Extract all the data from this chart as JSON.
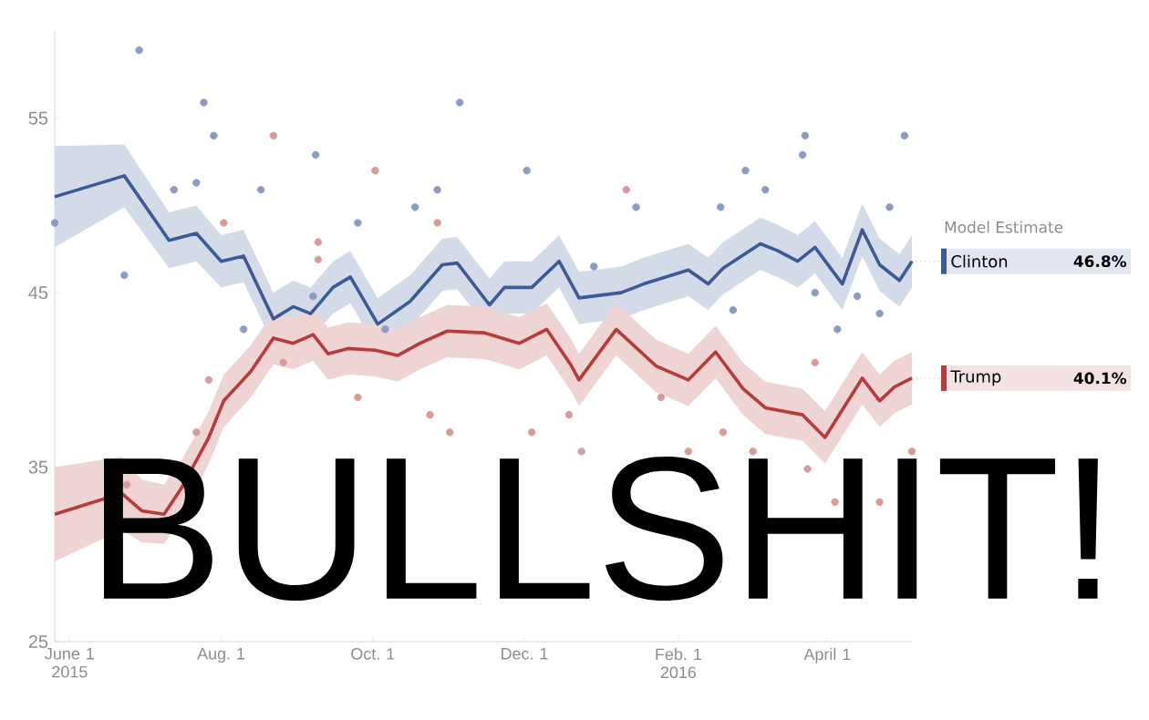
{
  "chart_data": {
    "type": "line",
    "legend_title": "Model Estimate",
    "legend": "right",
    "xlim": [
      "2015-05-26",
      "2016-05-05"
    ],
    "ylim": [
      25,
      60
    ],
    "xticks": [
      {
        "value": "2015-06-01",
        "label": "June 1 2015"
      },
      {
        "value": "2015-08-01",
        "label": "Aug. 1"
      },
      {
        "value": "2015-10-01",
        "label": "Oct. 1"
      },
      {
        "value": "2015-12-01",
        "label": "Dec. 1"
      },
      {
        "value": "2016-02-01",
        "label": "Feb. 1 2016"
      },
      {
        "value": "2016-04-01",
        "label": "April 1"
      }
    ],
    "yticks": [
      25,
      35,
      45,
      55
    ],
    "grid": false,
    "annotations": [
      "BULLSHIT!",
      "46.8%",
      "40.1%"
    ],
    "series": [
      {
        "type": "scatter",
        "marker": "circle",
        "color": "#8a9cc4",
        "x": [
          "2015-06-29",
          "2015-05-26",
          "2015-06-23",
          "2015-07-13",
          "2015-07-22",
          "2015-07-25",
          "2015-07-29",
          "2015-08-17",
          "2015-09-08",
          "2015-09-25",
          "2015-11-05",
          "2015-10-27",
          "2015-12-02",
          "2015-10-18",
          "2015-08-10",
          "2015-09-07",
          "2015-10-06",
          "2016-03-23",
          "2016-03-22",
          "2016-05-02",
          "2016-02-28",
          "2016-03-07",
          "2016-02-18",
          "2016-01-15",
          "2015-12-29",
          "2016-04-13",
          "2016-04-22",
          "2016-03-27",
          "2016-04-26",
          "2016-02-23",
          "2016-04-05"
        ],
        "values": [
          58.9,
          49.0,
          46.0,
          50.9,
          51.3,
          55.9,
          54.0,
          50.9,
          52.9,
          49.0,
          55.9,
          50.9,
          52.0,
          49.9,
          42.9,
          44.8,
          42.9,
          54.0,
          52.9,
          54.0,
          52.0,
          50.9,
          49.9,
          49.9,
          46.5,
          44.8,
          43.8,
          45.0,
          49.9,
          44.0,
          42.9
        ]
      },
      {
        "type": "scatter",
        "marker": "circle",
        "color": "#d99a9a",
        "x": [
          "2015-08-22",
          "2015-10-02",
          "2015-09-09",
          "2015-08-02",
          "2015-09-09",
          "2015-10-27",
          "2015-07-22",
          "2015-07-27",
          "2015-06-24",
          "2015-09-25",
          "2015-10-24",
          "2015-11-01",
          "2015-12-04",
          "2015-08-26",
          "2016-01-11",
          "2015-12-19",
          "2015-12-24",
          "2016-02-05",
          "2016-02-19",
          "2016-03-02",
          "2016-03-24",
          "2016-04-04",
          "2016-04-22",
          "2016-05-05",
          "2016-01-25",
          "2016-03-27"
        ],
        "values": [
          54.0,
          52.0,
          47.9,
          49.0,
          46.9,
          49.0,
          37.0,
          40.0,
          34.0,
          39.0,
          38.0,
          37.0,
          37.0,
          41.0,
          50.9,
          38.0,
          35.9,
          35.9,
          37.0,
          35.9,
          34.9,
          33.0,
          33.0,
          35.9,
          39.0,
          41.0
        ]
      },
      {
        "marker": "none",
        "name": "Clinton",
        "color": "#3d5a98",
        "x": [
          "2015-05-26",
          "2015-06-23",
          "2015-07-11",
          "2015-07-22",
          "2015-08-01",
          "2015-08-10",
          "2015-08-22",
          "2015-08-30",
          "2015-09-06",
          "2015-09-15",
          "2015-09-22",
          "2015-10-03",
          "2015-10-16",
          "2015-10-29",
          "2015-11-04",
          "2015-11-17",
          "2015-11-23",
          "2015-12-04",
          "2015-12-15",
          "2015-12-23",
          "2016-01-09",
          "2016-01-18",
          "2016-02-05",
          "2016-02-13",
          "2016-02-19",
          "2016-03-05",
          "2016-03-12",
          "2016-03-20",
          "2016-03-27",
          "2016-04-07",
          "2016-04-15",
          "2016-04-22",
          "2016-04-30",
          "2016-05-05"
        ],
        "values": [
          50.5,
          51.7,
          48.0,
          48.4,
          46.8,
          47.1,
          43.5,
          44.2,
          43.8,
          45.3,
          45.9,
          43.2,
          44.5,
          46.6,
          46.7,
          44.3,
          45.3,
          45.3,
          46.8,
          44.7,
          45.0,
          45.5,
          46.3,
          45.5,
          46.4,
          47.8,
          47.4,
          46.8,
          47.6,
          45.5,
          48.6,
          46.6,
          45.7,
          46.8
        ],
        "upper": [
          53.4,
          53.5,
          49.6,
          50.0,
          48.3,
          48.6,
          45.0,
          45.7,
          45.3,
          46.8,
          47.4,
          44.7,
          46.0,
          48.1,
          48.2,
          45.8,
          46.8,
          46.8,
          48.3,
          46.2,
          46.5,
          47.0,
          47.8,
          47.0,
          47.9,
          49.3,
          48.9,
          48.3,
          49.1,
          47.0,
          50.1,
          48.1,
          47.2,
          48.3
        ],
        "lower": [
          47.6,
          49.9,
          46.4,
          46.8,
          45.3,
          45.6,
          42.0,
          42.7,
          42.3,
          43.8,
          44.4,
          41.7,
          43.0,
          45.1,
          45.2,
          42.8,
          43.8,
          43.8,
          45.3,
          43.2,
          43.5,
          44.0,
          44.8,
          44.0,
          44.9,
          46.3,
          45.9,
          45.3,
          46.1,
          44.0,
          47.1,
          45.1,
          44.2,
          45.3
        ]
      },
      {
        "marker": "none",
        "name": "Trump",
        "color": "#b83a3a",
        "x": [
          "2015-05-26",
          "2015-06-22",
          "2015-06-30",
          "2015-07-09",
          "2015-07-16",
          "2015-07-27",
          "2015-08-02",
          "2015-08-13",
          "2015-08-22",
          "2015-08-30",
          "2015-09-07",
          "2015-09-13",
          "2015-09-21",
          "2015-10-02",
          "2015-10-11",
          "2015-10-20",
          "2015-10-31",
          "2015-11-15",
          "2015-11-29",
          "2015-12-10",
          "2015-12-20",
          "2015-12-23",
          "2016-01-07",
          "2016-01-23",
          "2016-02-05",
          "2016-02-16",
          "2016-02-27",
          "2016-03-07",
          "2016-03-22",
          "2016-03-31",
          "2016-04-15",
          "2016-04-22",
          "2016-04-28",
          "2016-05-05"
        ],
        "values": [
          32.3,
          33.5,
          32.5,
          32.3,
          33.8,
          36.7,
          38.8,
          40.5,
          42.4,
          42.1,
          42.6,
          41.5,
          41.8,
          41.7,
          41.4,
          42.1,
          42.8,
          42.7,
          42.1,
          42.9,
          40.8,
          40.0,
          42.9,
          40.8,
          40.0,
          41.6,
          39.5,
          38.4,
          38.0,
          36.7,
          40.1,
          38.8,
          39.6,
          40.1
        ],
        "upper": [
          35.0,
          35.6,
          34.3,
          34.0,
          35.4,
          38.2,
          40.3,
          42.0,
          43.9,
          43.6,
          44.1,
          43.0,
          43.3,
          43.2,
          42.9,
          43.6,
          44.3,
          44.2,
          43.6,
          44.4,
          42.3,
          41.5,
          44.4,
          42.3,
          41.5,
          43.1,
          41.0,
          39.9,
          39.5,
          38.2,
          41.6,
          40.3,
          41.1,
          41.6
        ],
        "lower": [
          29.6,
          31.4,
          30.7,
          30.6,
          32.2,
          35.2,
          37.3,
          39.0,
          40.9,
          40.6,
          41.1,
          40.0,
          40.3,
          40.2,
          39.9,
          40.6,
          41.3,
          41.2,
          40.6,
          41.4,
          39.3,
          38.5,
          41.4,
          39.3,
          38.5,
          40.1,
          38.0,
          36.9,
          36.5,
          35.2,
          38.6,
          37.3,
          38.1,
          38.6
        ]
      }
    ]
  }
}
